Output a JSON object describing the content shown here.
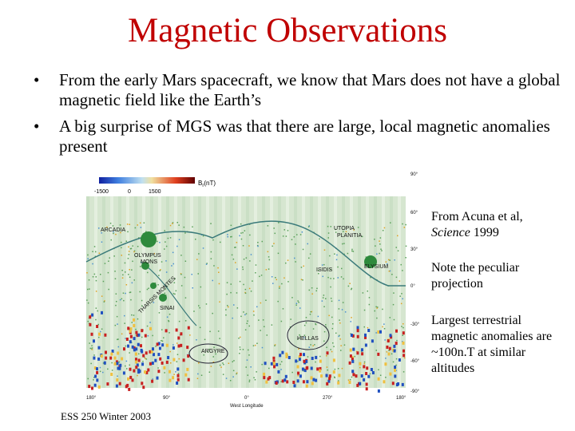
{
  "title": "Magnetic Observations",
  "bullets": [
    "From the early Mars spacecraft, we know that Mars does not have a global magnetic field like the Earth’s",
    "A big surprise of MGS was that there are large, local magnetic anomalies present"
  ],
  "bullet_symbol": "•",
  "figure": {
    "colorbar": {
      "label": "B",
      "label_sub": "r",
      "label_unit": "(nT)",
      "ticks": [
        "-1500",
        "0",
        "1500"
      ]
    },
    "lat_labels": [
      "90°",
      "60°",
      "30°",
      "0°",
      "-30°",
      "-60°",
      "-90°"
    ],
    "lon_labels": [
      "180°",
      "90°",
      "0°",
      "270°",
      "180°"
    ],
    "xlabel": "West Longitude",
    "features": [
      "ARCADIA",
      "OLYMPUS",
      "MONS",
      "THARSIS MONTES",
      "SINAI",
      "ARGYRE",
      "UTOPIA",
      "PLANITIA",
      "ISIDIS",
      "ELYSIUM",
      "HELLAS"
    ]
  },
  "captions": {
    "citation_line1": "From Acuna et al,",
    "citation_journal": "Science",
    "citation_year": " 1999",
    "note": "Note the peculiar projection",
    "largest": "Largest terrestrial magnetic anomalies are ~100n.T at similar altitudes"
  },
  "footer": "ESS 250 Winter 2003",
  "colors": {
    "title": "#c00000",
    "map_bg": "#d6e6d0",
    "noise": "#5aa05a",
    "positive": "#c82020",
    "negative": "#2050c0"
  }
}
